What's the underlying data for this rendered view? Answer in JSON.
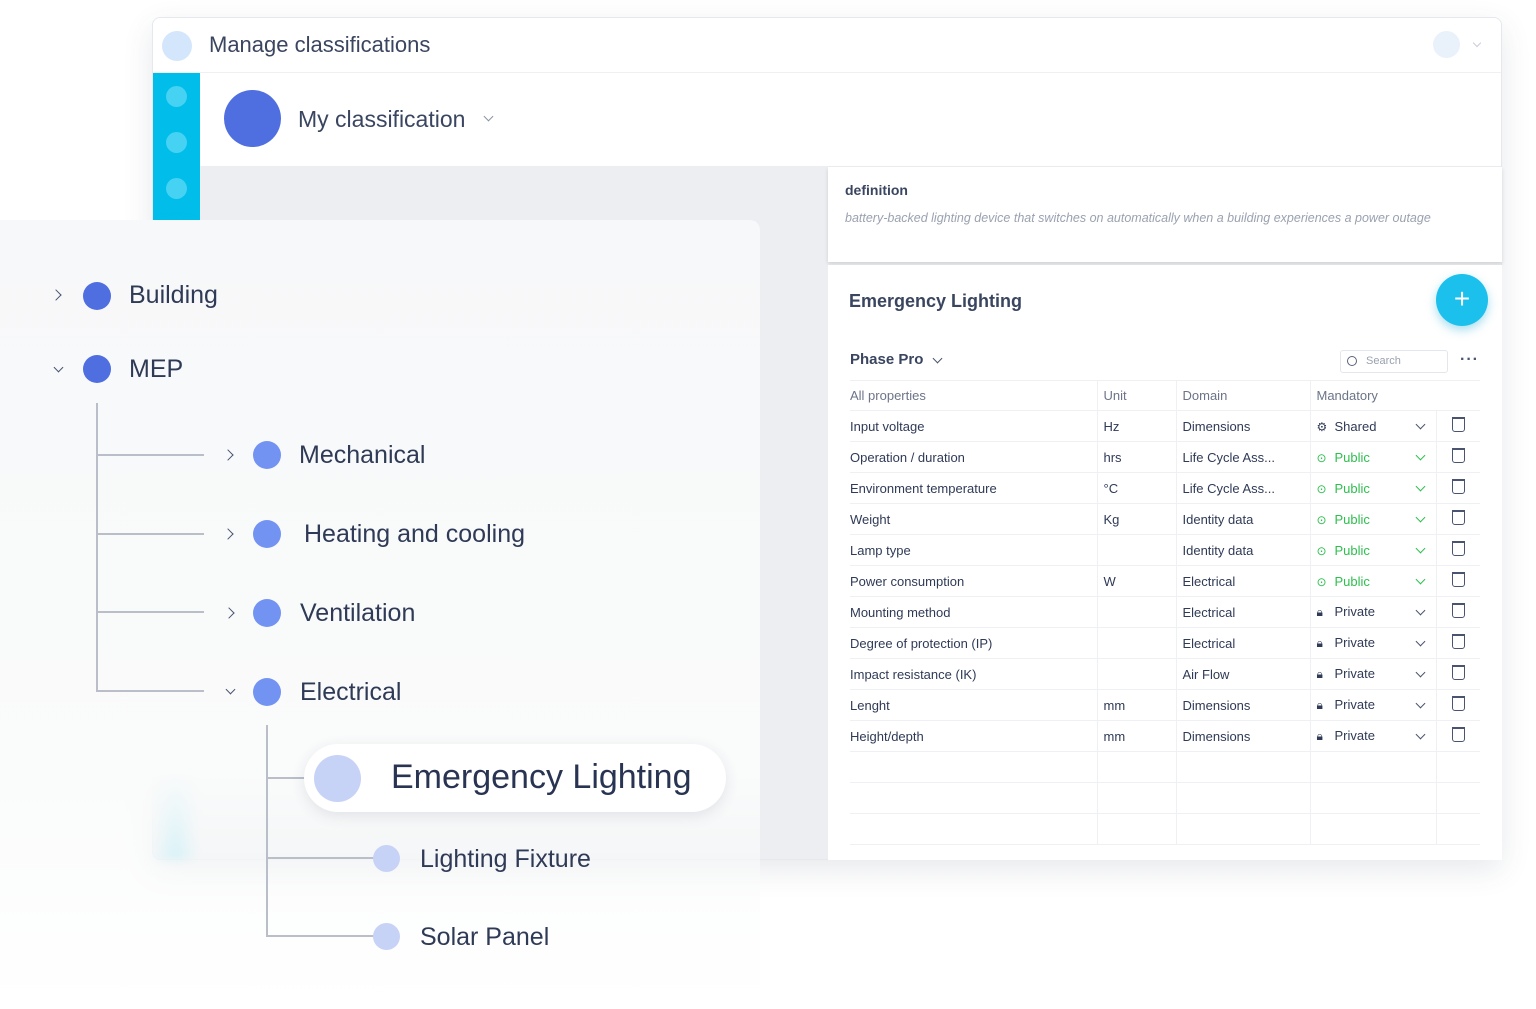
{
  "header": {
    "title": "Manage classifications"
  },
  "classification": {
    "name": "My classification"
  },
  "colors": {
    "accent": "#00bde9",
    "primary": "#4f6ee0",
    "public": "#2fbf4f"
  },
  "tree": {
    "top": [
      {
        "label": "Building",
        "expanded": false
      },
      {
        "label": "MEP",
        "expanded": true
      }
    ],
    "mep": [
      {
        "label": "Mechanical",
        "expanded": false
      },
      {
        "label": "Heating and cooling",
        "expanded": false
      },
      {
        "label": "Ventilation",
        "expanded": false
      },
      {
        "label": "Electrical",
        "expanded": true
      }
    ],
    "electrical": [
      {
        "label": "Emergency Lighting",
        "selected": true
      },
      {
        "label": "Lighting Fixture"
      },
      {
        "label": "Solar Panel"
      }
    ]
  },
  "definition": {
    "label": "definition",
    "text": "battery-backed lighting device that switches on automatically when a building experiences a power outage"
  },
  "detail": {
    "title": "Emergency Lighting",
    "add_icon": "plus-icon",
    "filter": "Phase Pro",
    "search_placeholder": "Search",
    "columns": [
      "All properties",
      "Unit",
      "Domain",
      "Mandatory"
    ],
    "rows": [
      {
        "name": "Input voltage",
        "unit": "Hz",
        "domain": "Dimensions",
        "mandatory": "Shared"
      },
      {
        "name": "Operation / duration",
        "unit": "hrs",
        "domain": "Life Cycle Ass...",
        "mandatory": "Public"
      },
      {
        "name": "Environment temperature",
        "unit": "°C",
        "domain": "Life Cycle Ass...",
        "mandatory": "Public"
      },
      {
        "name": "Weight",
        "unit": "Kg",
        "domain": "Identity data",
        "mandatory": "Public"
      },
      {
        "name": "Lamp type",
        "unit": "",
        "domain": "Identity data",
        "mandatory": "Public"
      },
      {
        "name": "Power consumption",
        "unit": "W",
        "domain": "Electrical",
        "mandatory": "Public"
      },
      {
        "name": "Mounting method",
        "unit": "",
        "domain": "Electrical",
        "mandatory": "Private"
      },
      {
        "name": "Degree of protection (IP)",
        "unit": "",
        "domain": "Electrical",
        "mandatory": "Private"
      },
      {
        "name": "Impact resistance (IK)",
        "unit": "",
        "domain": "Air Flow",
        "mandatory": "Private"
      },
      {
        "name": "Lenght",
        "unit": "mm",
        "domain": "Dimensions",
        "mandatory": "Private"
      },
      {
        "name": "Height/depth",
        "unit": "mm",
        "domain": "Dimensions",
        "mandatory": "Private"
      }
    ]
  }
}
